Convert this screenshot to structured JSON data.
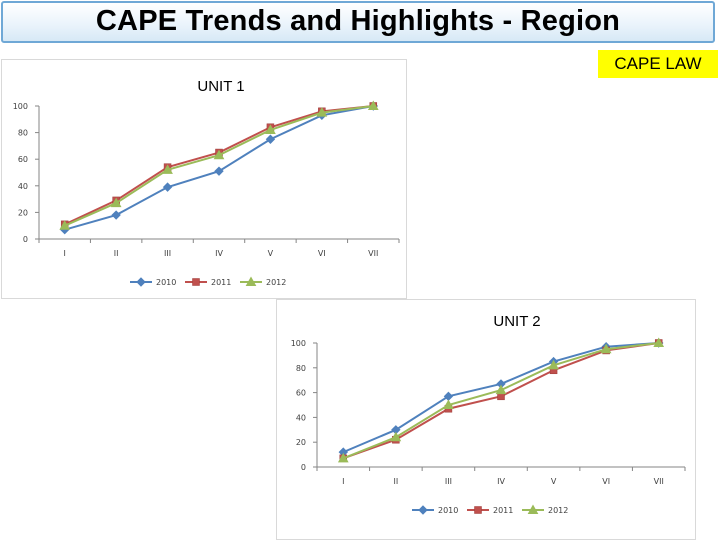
{
  "page": {
    "title": "CAPE Trends and Highlights - Region",
    "badge": "CAPE LAW"
  },
  "colors": {
    "2010": "#4f81bd",
    "2011": "#c0504d",
    "2012": "#9bbb59"
  },
  "chart_data": [
    {
      "type": "line",
      "title": "UNIT 1",
      "categories": [
        "I",
        "II",
        "III",
        "IV",
        "V",
        "VI",
        "VII"
      ],
      "ylim": [
        0,
        100
      ],
      "yticks": [
        0,
        20,
        40,
        60,
        80,
        100
      ],
      "grid": false,
      "legend_position": "bottom",
      "series": [
        {
          "name": "2010",
          "marker": "diamond",
          "values": [
            7,
            18,
            39,
            51,
            75,
            93,
            100
          ]
        },
        {
          "name": "2011",
          "marker": "square",
          "values": [
            11,
            29,
            54,
            65,
            84,
            96,
            100
          ]
        },
        {
          "name": "2012",
          "marker": "triangle",
          "values": [
            10,
            27,
            52,
            63,
            82,
            95,
            100
          ]
        }
      ]
    },
    {
      "type": "line",
      "title": "UNIT 2",
      "categories": [
        "I",
        "II",
        "III",
        "IV",
        "V",
        "VI",
        "VII"
      ],
      "ylim": [
        0,
        100
      ],
      "yticks": [
        0,
        20,
        40,
        60,
        80,
        100
      ],
      "grid": false,
      "legend_position": "bottom",
      "series": [
        {
          "name": "2010",
          "marker": "diamond",
          "values": [
            12,
            30,
            57,
            67,
            85,
            97,
            100
          ]
        },
        {
          "name": "2011",
          "marker": "square",
          "values": [
            7,
            22,
            47,
            57,
            78,
            94,
            100
          ]
        },
        {
          "name": "2012",
          "marker": "triangle",
          "values": [
            7,
            24,
            50,
            62,
            82,
            95,
            100
          ]
        }
      ]
    }
  ]
}
